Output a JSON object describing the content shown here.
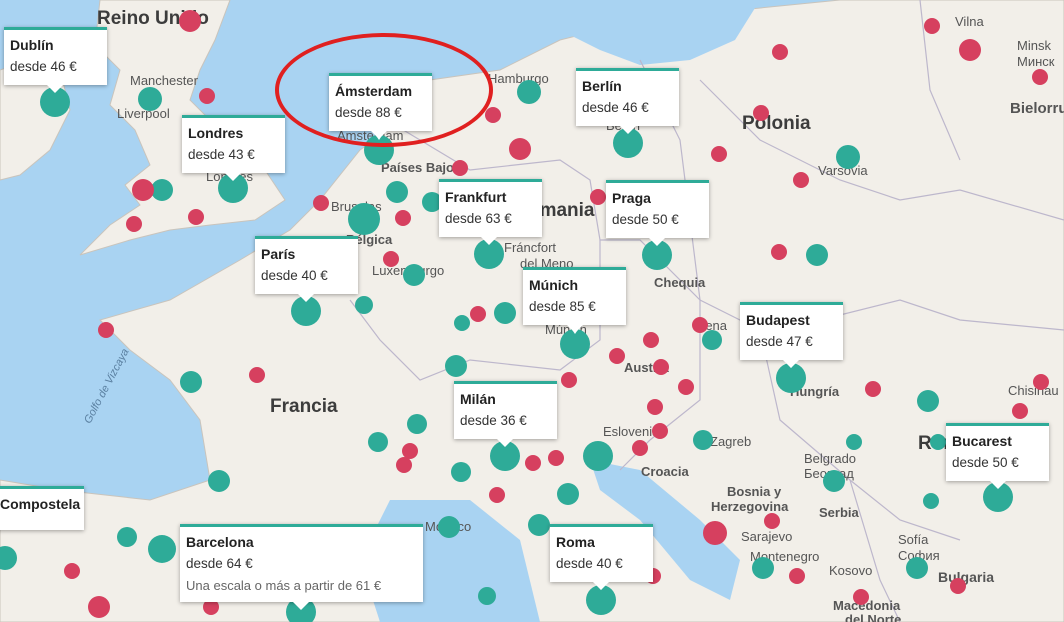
{
  "map": {
    "countries": [
      "Reino Unido",
      "Polonia",
      "Alemania",
      "Francia",
      "Chequia",
      "Austria",
      "Hungría",
      "Croacia",
      "Bosnia y",
      "Herzegovina",
      "Serbia",
      "Bulgaria",
      "Rumanía",
      "Bélgica",
      "Países Bajos",
      "Bielorrusia",
      "Kosovo"
    ],
    "cities": [
      "Manchester",
      "Liverpool",
      "Londres",
      "Hamburgo",
      "Berlín",
      "Varsovia",
      "Vilna",
      "Minsk",
      "Минск",
      "Ámsterdam",
      "Bruselas",
      "Luxemburgo",
      "Frankfurt",
      "Fráncfort",
      "del Meno",
      "Múnich",
      "Praga",
      "Viena",
      "Budapest",
      "Milán",
      "Zagreb",
      "Belgrado",
      "Београд",
      "Sarajevo",
      "Sofía",
      "София",
      "Bucarest",
      "Chisinau",
      "Roma",
      "Macedonia",
      "del Norte",
      "Montenegro",
      "Golfo de Vizcaya",
      "Dublín",
      "Mónaco",
      "Eslovenia"
    ],
    "colors": {
      "water": "#a9d3f2",
      "land": "#f2efe9",
      "direct": "#2eab98",
      "indirect": "#d6405f",
      "highlight": "#e02020"
    }
  },
  "destinations": [
    {
      "city": "Dublín",
      "price": "desde 46 €"
    },
    {
      "city": "Londres",
      "price": "desde 43 €"
    },
    {
      "city": "Ámsterdam",
      "price": "desde 88 €"
    },
    {
      "city": "Berlín",
      "price": "desde 46 €"
    },
    {
      "city": "París",
      "price": "desde 40 €"
    },
    {
      "city": "Frankfurt",
      "price": "desde 63 €"
    },
    {
      "city": "Praga",
      "price": "desde 50 €"
    },
    {
      "city": "Múnich",
      "price": "desde 85 €"
    },
    {
      "city": "Budapest",
      "price": "desde 47 €"
    },
    {
      "city": "Milán",
      "price": "desde 36 €"
    },
    {
      "city": "Bucarest",
      "price": "desde 50 €"
    },
    {
      "city": "Compostela",
      "price": ""
    },
    {
      "city": "Barcelona",
      "price": "desde 64 €",
      "extra": "Una escala o más a partir de 61 €"
    },
    {
      "city": "Roma",
      "price": "desde 40 €"
    }
  ],
  "highlight": {
    "target": "Ámsterdam"
  }
}
